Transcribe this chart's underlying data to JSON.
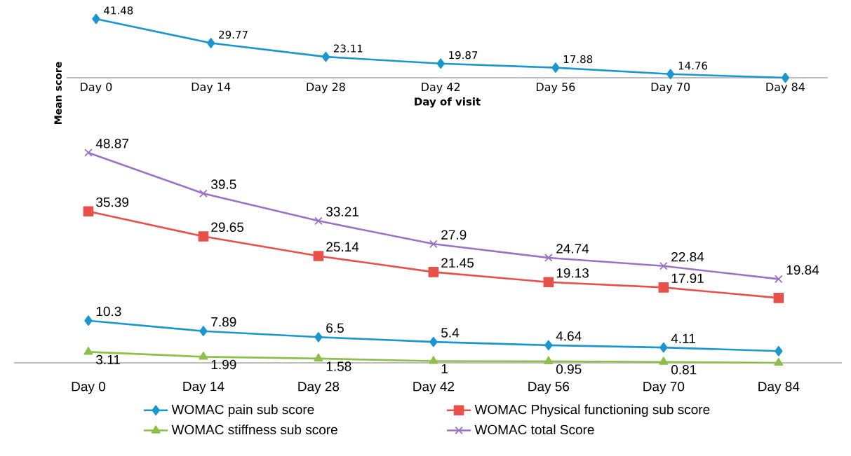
{
  "chart_data": [
    {
      "type": "line",
      "ylabel": "Mean score",
      "xlabel": "Day of visit",
      "categories": [
        "Day 0",
        "Day 14",
        "Day 28",
        "Day 42",
        "Day 56",
        "Day 70",
        "Day 84"
      ],
      "tick_labels": "x",
      "marker": "diamond",
      "line_style": "solid",
      "series": [
        {
          "color": "#1b96cf",
          "values": [
            41.48,
            29.77,
            23.11,
            19.87,
            17.88,
            14.76,
            13.0
          ],
          "value_labels": [
            "41.48",
            "29.77",
            "23.11",
            "19.87",
            "17.88",
            "14.76",
            null
          ]
        }
      ]
    },
    {
      "type": "line",
      "categories": [
        "Day 0",
        "Day 14",
        "Day 28",
        "Day 42",
        "Day 56",
        "Day 70",
        "Day 84"
      ],
      "tick_labels": "x",
      "legend": "bottom",
      "line_style": "solid",
      "series": [
        {
          "name": "WOMAC pain sub score",
          "color": "#1b96cf",
          "marker": "diamond",
          "values": [
            10.3,
            7.89,
            6.5,
            5.4,
            4.64,
            4.11,
            3.3
          ],
          "value_labels": [
            "10.3",
            "7.89",
            "6.5",
            "5.4",
            "4.64",
            "4.11",
            null
          ]
        },
        {
          "name": "WOMAC Physical functioning sub score",
          "color": "#e8504a",
          "marker": "square",
          "values": [
            35.39,
            29.65,
            25.14,
            21.45,
            19.13,
            17.91,
            15.5
          ],
          "value_labels": [
            "35.39",
            "29.65",
            "25.14",
            "21.45",
            "19.13",
            "17.91",
            null
          ]
        },
        {
          "name": "WOMAC stiffness sub score",
          "color": "#8cc04a",
          "marker": "triangle",
          "values": [
            3.11,
            1.99,
            1.58,
            1.0,
            0.95,
            0.81,
            0.6
          ],
          "value_labels": [
            "3.11",
            "1.99",
            "1.58",
            "1",
            "0.95",
            "0.81",
            null
          ]
        },
        {
          "name": "WOMAC total Score",
          "color": "#9b72c6",
          "marker": "cross",
          "values": [
            48.87,
            39.5,
            33.21,
            27.9,
            24.74,
            22.84,
            19.84
          ],
          "value_labels": [
            "48.87",
            "39.5",
            "33.21",
            "27.9",
            "24.74",
            "22.84",
            "19.84"
          ]
        }
      ]
    }
  ]
}
